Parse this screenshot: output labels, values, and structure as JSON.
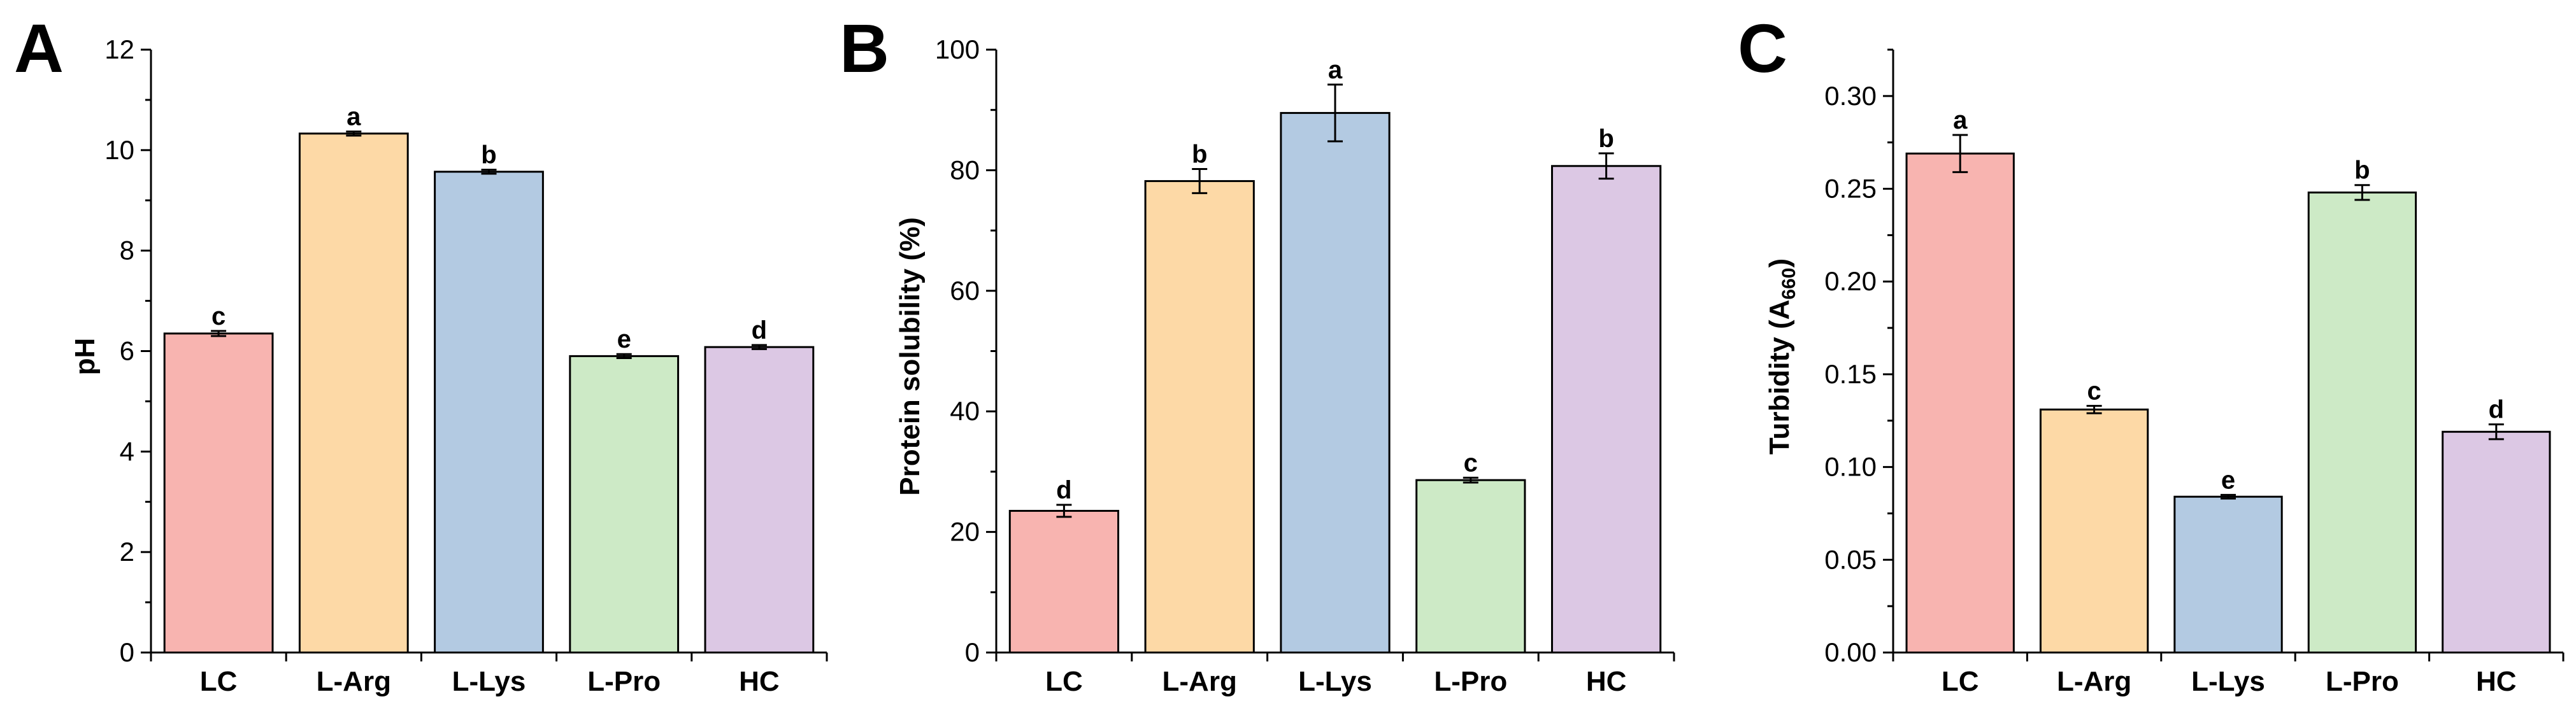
{
  "chart_data": [
    {
      "panel": "A",
      "type": "bar",
      "categories": [
        "LC",
        "L-Arg",
        "L-Lys",
        "L-Pro",
        "HC"
      ],
      "values": [
        6.35,
        10.33,
        9.57,
        5.9,
        6.08
      ],
      "errors": [
        0.05,
        0.04,
        0.04,
        0.04,
        0.04
      ],
      "significance": [
        "c",
        "a",
        "b",
        "e",
        "d"
      ],
      "colors": [
        "#F8B4B0",
        "#FDD9A6",
        "#B3CAE2",
        "#CDEAC6",
        "#DCC8E4"
      ],
      "ylabel": "pH",
      "ylim": [
        0,
        12
      ],
      "yticks": [
        "0",
        "2",
        "4",
        "6",
        "8",
        "10",
        "12"
      ],
      "ytick_values": [
        0,
        2,
        4,
        6,
        8,
        10,
        12
      ],
      "minor_step": 1,
      "grid": false
    },
    {
      "panel": "B",
      "type": "bar",
      "categories": [
        "LC",
        "L-Arg",
        "L-Lys",
        "L-Pro",
        "HC"
      ],
      "values": [
        23.5,
        78.2,
        89.5,
        28.6,
        80.7
      ],
      "errors": [
        1.0,
        2.0,
        4.7,
        0.4,
        2.1
      ],
      "significance": [
        "d",
        "b",
        "a",
        "c",
        "b"
      ],
      "colors": [
        "#F8B4B0",
        "#FDD9A6",
        "#B3CAE2",
        "#CDEAC6",
        "#DCC8E4"
      ],
      "ylabel": "Protein solubility (%)",
      "ylim": [
        0,
        100
      ],
      "yticks": [
        "0",
        "20",
        "40",
        "60",
        "80",
        "100"
      ],
      "ytick_values": [
        0,
        20,
        40,
        60,
        80,
        100
      ],
      "minor_step": 10,
      "grid": false
    },
    {
      "panel": "C",
      "type": "bar",
      "categories": [
        "LC",
        "L-Arg",
        "L-Lys",
        "L-Pro",
        "HC"
      ],
      "values": [
        0.269,
        0.131,
        0.084,
        0.248,
        0.119
      ],
      "errors": [
        0.01,
        0.002,
        0.001,
        0.004,
        0.004
      ],
      "significance": [
        "a",
        "c",
        "e",
        "b",
        "d"
      ],
      "colors": [
        "#F8B4B0",
        "#FDD9A6",
        "#B3CAE2",
        "#CDEAC6",
        "#DCC8E4"
      ],
      "ylabel_main": "Turbidity (A",
      "ylabel_sub": "660",
      "ylabel_end": ")",
      "ylim": [
        0,
        0.325
      ],
      "yticks": [
        "0.00",
        "0.05",
        "0.10",
        "0.15",
        "0.20",
        "0.25",
        "0.30"
      ],
      "ytick_values": [
        0,
        0.05,
        0.1,
        0.15,
        0.2,
        0.25,
        0.3
      ],
      "minor_step": 0.025,
      "grid": false
    }
  ]
}
